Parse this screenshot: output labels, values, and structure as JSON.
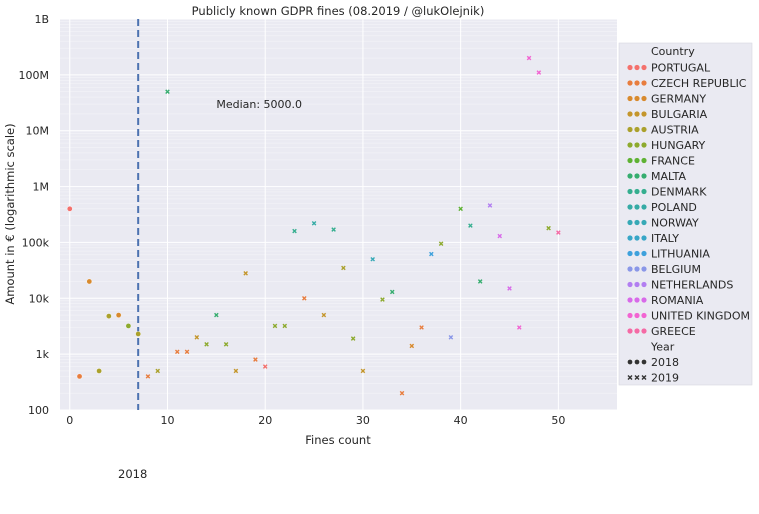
{
  "chart_data": {
    "type": "scatter",
    "title": "Publicly known GDPR fines (08.2019 / @lukOlejnik)",
    "xlabel": "Fines count",
    "ylabel": "Amount in € (logarithmic scale)",
    "y_scale": "log",
    "xlim": [
      -1,
      56
    ],
    "ylim": [
      100,
      1000000000
    ],
    "x_ticks": [
      "0",
      "10",
      "20",
      "30",
      "40",
      "50"
    ],
    "y_ticks": [
      "100",
      "1k",
      "10k",
      "100k",
      "1M",
      "10M",
      "100M",
      "1B"
    ],
    "median_line": {
      "x": 7,
      "label": "Median: 5000.0"
    },
    "legend": {
      "position": "right",
      "country_title": "Country",
      "countries": [
        {
          "name": "PORTUGAL",
          "color": "#f4716d"
        },
        {
          "name": "CZECH REPUBLIC",
          "color": "#e87d3e"
        },
        {
          "name": "GERMANY",
          "color": "#d88a2e"
        },
        {
          "name": "BULGARIA",
          "color": "#c4962c"
        },
        {
          "name": "AUSTRIA",
          "color": "#aba12c"
        },
        {
          "name": "HUNGARY",
          "color": "#8daa2e"
        },
        {
          "name": "FRANCE",
          "color": "#5fb234"
        },
        {
          "name": "MALTA",
          "color": "#36ad6f"
        },
        {
          "name": "DENMARK",
          "color": "#35ae8f"
        },
        {
          "name": "POLAND",
          "color": "#36aba5"
        },
        {
          "name": "NORWAY",
          "color": "#37a9b6"
        },
        {
          "name": "ITALY",
          "color": "#38a6c7"
        },
        {
          "name": "LITHUANIA",
          "color": "#3ea1dc"
        },
        {
          "name": "BELGIUM",
          "color": "#8a97e8"
        },
        {
          "name": "NETHERLANDS",
          "color": "#b27ef1"
        },
        {
          "name": "ROMANIA",
          "color": "#d86ae9"
        },
        {
          "name": "UNITED KINGDOM",
          "color": "#f264d2"
        },
        {
          "name": "GREECE",
          "color": "#f56aa5"
        }
      ],
      "year_title": "Year",
      "years": [
        {
          "name": "2018",
          "marker": "circle"
        },
        {
          "name": "2019",
          "marker": "x"
        }
      ]
    },
    "points": [
      {
        "x": 0,
        "y": 400000,
        "country": "PORTUGAL",
        "year": "2018"
      },
      {
        "x": 1,
        "y": 400,
        "country": "CZECH REPUBLIC",
        "year": "2018"
      },
      {
        "x": 2,
        "y": 20000,
        "country": "GERMANY",
        "year": "2018"
      },
      {
        "x": 3,
        "y": 500,
        "country": "AUSTRIA",
        "year": "2018"
      },
      {
        "x": 4,
        "y": 4800,
        "country": "AUSTRIA",
        "year": "2018"
      },
      {
        "x": 5,
        "y": 5000,
        "country": "GERMANY",
        "year": "2018"
      },
      {
        "x": 6,
        "y": 3200,
        "country": "HUNGARY",
        "year": "2018"
      },
      {
        "x": 7,
        "y": 2300,
        "country": "AUSTRIA",
        "year": "2018"
      },
      {
        "x": 8,
        "y": 400,
        "country": "CZECH REPUBLIC",
        "year": "2019"
      },
      {
        "x": 9,
        "y": 500,
        "country": "AUSTRIA",
        "year": "2019"
      },
      {
        "x": 10,
        "y": 50000000,
        "country": "MALTA",
        "year": "2019"
      },
      {
        "x": 11,
        "y": 1100,
        "country": "CZECH REPUBLIC",
        "year": "2019"
      },
      {
        "x": 12,
        "y": 1100,
        "country": "CZECH REPUBLIC",
        "year": "2019"
      },
      {
        "x": 13,
        "y": 2000,
        "country": "BULGARIA",
        "year": "2019"
      },
      {
        "x": 14,
        "y": 1500,
        "country": "HUNGARY",
        "year": "2019"
      },
      {
        "x": 15,
        "y": 5000,
        "country": "MALTA",
        "year": "2019"
      },
      {
        "x": 16,
        "y": 1500,
        "country": "HUNGARY",
        "year": "2019"
      },
      {
        "x": 17,
        "y": 500,
        "country": "BULGARIA",
        "year": "2019"
      },
      {
        "x": 18,
        "y": 28000,
        "country": "BULGARIA",
        "year": "2019"
      },
      {
        "x": 19,
        "y": 800,
        "country": "CZECH REPUBLIC",
        "year": "2019"
      },
      {
        "x": 20,
        "y": 600,
        "country": "PORTUGAL",
        "year": "2019"
      },
      {
        "x": 21,
        "y": 3200,
        "country": "HUNGARY",
        "year": "2019"
      },
      {
        "x": 22,
        "y": 3200,
        "country": "HUNGARY",
        "year": "2019"
      },
      {
        "x": 23,
        "y": 160000,
        "country": "DENMARK",
        "year": "2019"
      },
      {
        "x": 24,
        "y": 10000,
        "country": "CZECH REPUBLIC",
        "year": "2019"
      },
      {
        "x": 25,
        "y": 220000,
        "country": "POLAND",
        "year": "2019"
      },
      {
        "x": 26,
        "y": 5000,
        "country": "BULGARIA",
        "year": "2019"
      },
      {
        "x": 27,
        "y": 170000,
        "country": "DENMARK",
        "year": "2019"
      },
      {
        "x": 28,
        "y": 35000,
        "country": "AUSTRIA",
        "year": "2019"
      },
      {
        "x": 29,
        "y": 1900,
        "country": "HUNGARY",
        "year": "2019"
      },
      {
        "x": 30,
        "y": 500,
        "country": "BULGARIA",
        "year": "2019"
      },
      {
        "x": 31,
        "y": 50000,
        "country": "NORWAY",
        "year": "2019"
      },
      {
        "x": 32,
        "y": 9500,
        "country": "HUNGARY",
        "year": "2019"
      },
      {
        "x": 33,
        "y": 13000,
        "country": "MALTA",
        "year": "2019"
      },
      {
        "x": 34,
        "y": 200,
        "country": "CZECH REPUBLIC",
        "year": "2019"
      },
      {
        "x": 35,
        "y": 1400,
        "country": "GERMANY",
        "year": "2019"
      },
      {
        "x": 36,
        "y": 3000,
        "country": "CZECH REPUBLIC",
        "year": "2019"
      },
      {
        "x": 37,
        "y": 62000,
        "country": "LITHUANIA",
        "year": "2019"
      },
      {
        "x": 38,
        "y": 95000,
        "country": "HUNGARY",
        "year": "2019"
      },
      {
        "x": 39,
        "y": 2000,
        "country": "BELGIUM",
        "year": "2019"
      },
      {
        "x": 40,
        "y": 400000,
        "country": "FRANCE",
        "year": "2019"
      },
      {
        "x": 41,
        "y": 200000,
        "country": "DENMARK",
        "year": "2019"
      },
      {
        "x": 42,
        "y": 20000,
        "country": "MALTA",
        "year": "2019"
      },
      {
        "x": 43,
        "y": 460000,
        "country": "NETHERLANDS",
        "year": "2019"
      },
      {
        "x": 44,
        "y": 130000,
        "country": "ROMANIA",
        "year": "2019"
      },
      {
        "x": 45,
        "y": 15000,
        "country": "ROMANIA",
        "year": "2019"
      },
      {
        "x": 46,
        "y": 3000,
        "country": "UNITED KINGDOM",
        "year": "2019"
      },
      {
        "x": 47,
        "y": 200000000,
        "country": "UNITED KINGDOM",
        "year": "2019"
      },
      {
        "x": 48,
        "y": 110000000,
        "country": "UNITED KINGDOM",
        "year": "2019"
      },
      {
        "x": 49,
        "y": 180000,
        "country": "HUNGARY",
        "year": "2019"
      },
      {
        "x": 50,
        "y": 150000,
        "country": "GREECE",
        "year": "2019"
      }
    ]
  },
  "footer_label": "2018"
}
